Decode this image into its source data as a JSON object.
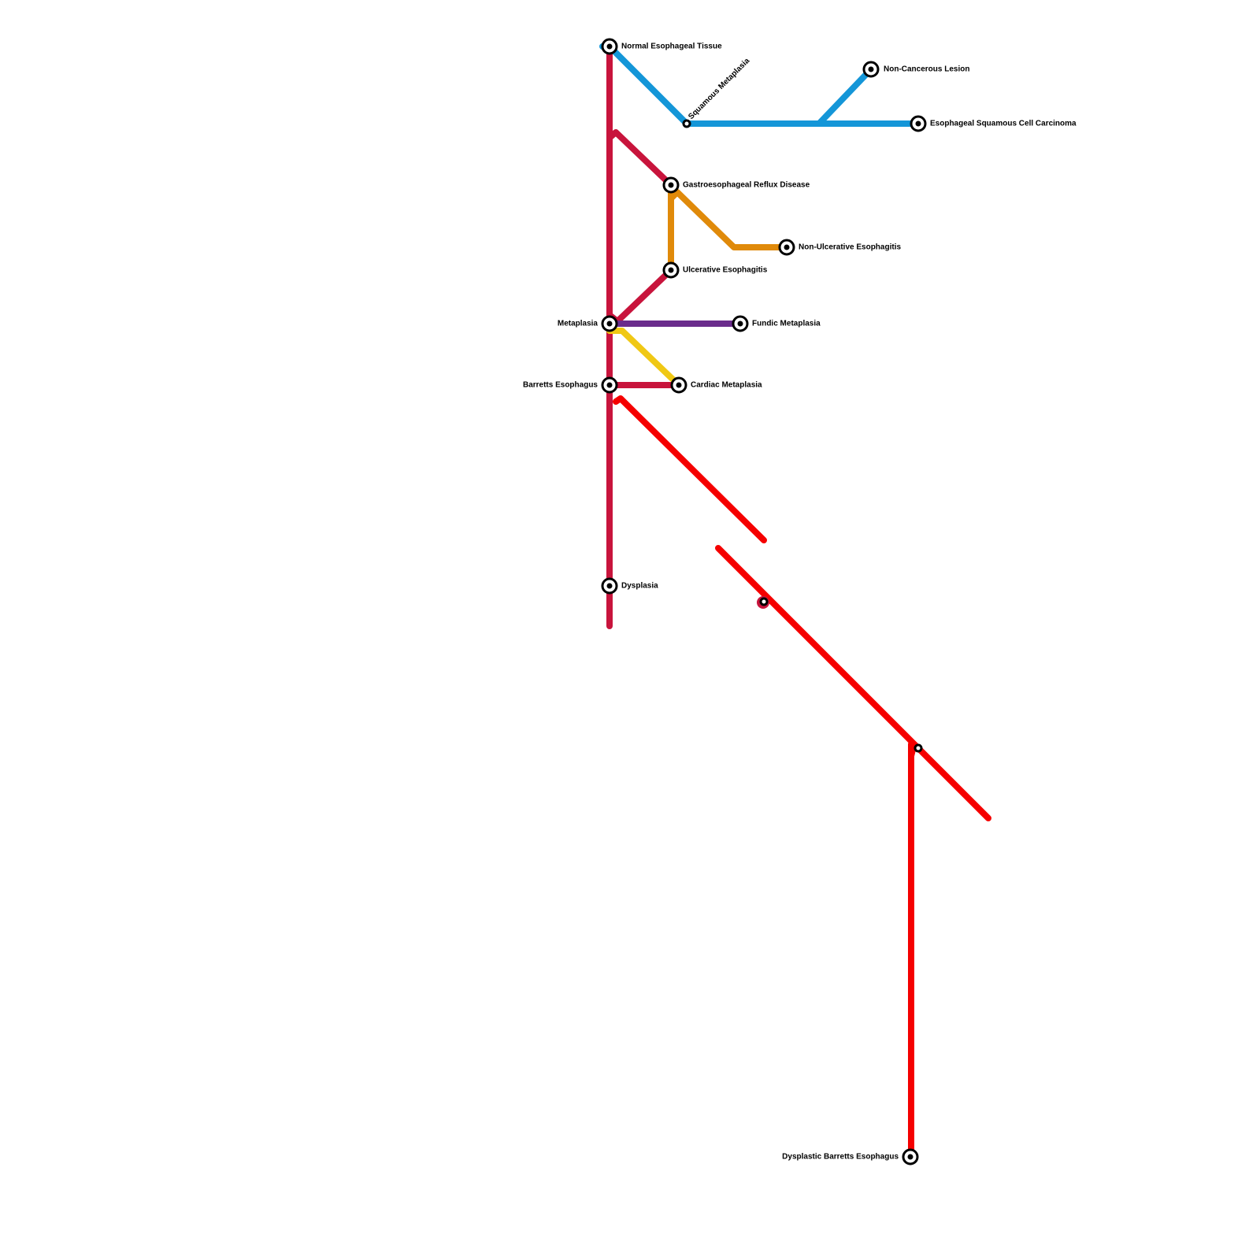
{
  "nodes": [
    {
      "label": "Normal Esophageal Tissue"
    },
    {
      "label": "Squamous Metaplasia"
    },
    {
      "label": "Non-Cancerous Lesion"
    },
    {
      "label": "Esophageal Squamous Cell Carcinoma"
    },
    {
      "label": "Gastroesophageal Reflux Disease"
    },
    {
      "label": "Non-Ulcerative Esophagitis"
    },
    {
      "label": "Ulcerative Esophagitis"
    },
    {
      "label": "Metaplasia"
    },
    {
      "label": "Fundic Metaplasia"
    },
    {
      "label": "Barretts Esophagus"
    },
    {
      "label": "Cardiac Metaplasia"
    },
    {
      "label": "Dysplasia"
    },
    {
      "label": "Dysplastic Barretts Esophagus"
    }
  ]
}
